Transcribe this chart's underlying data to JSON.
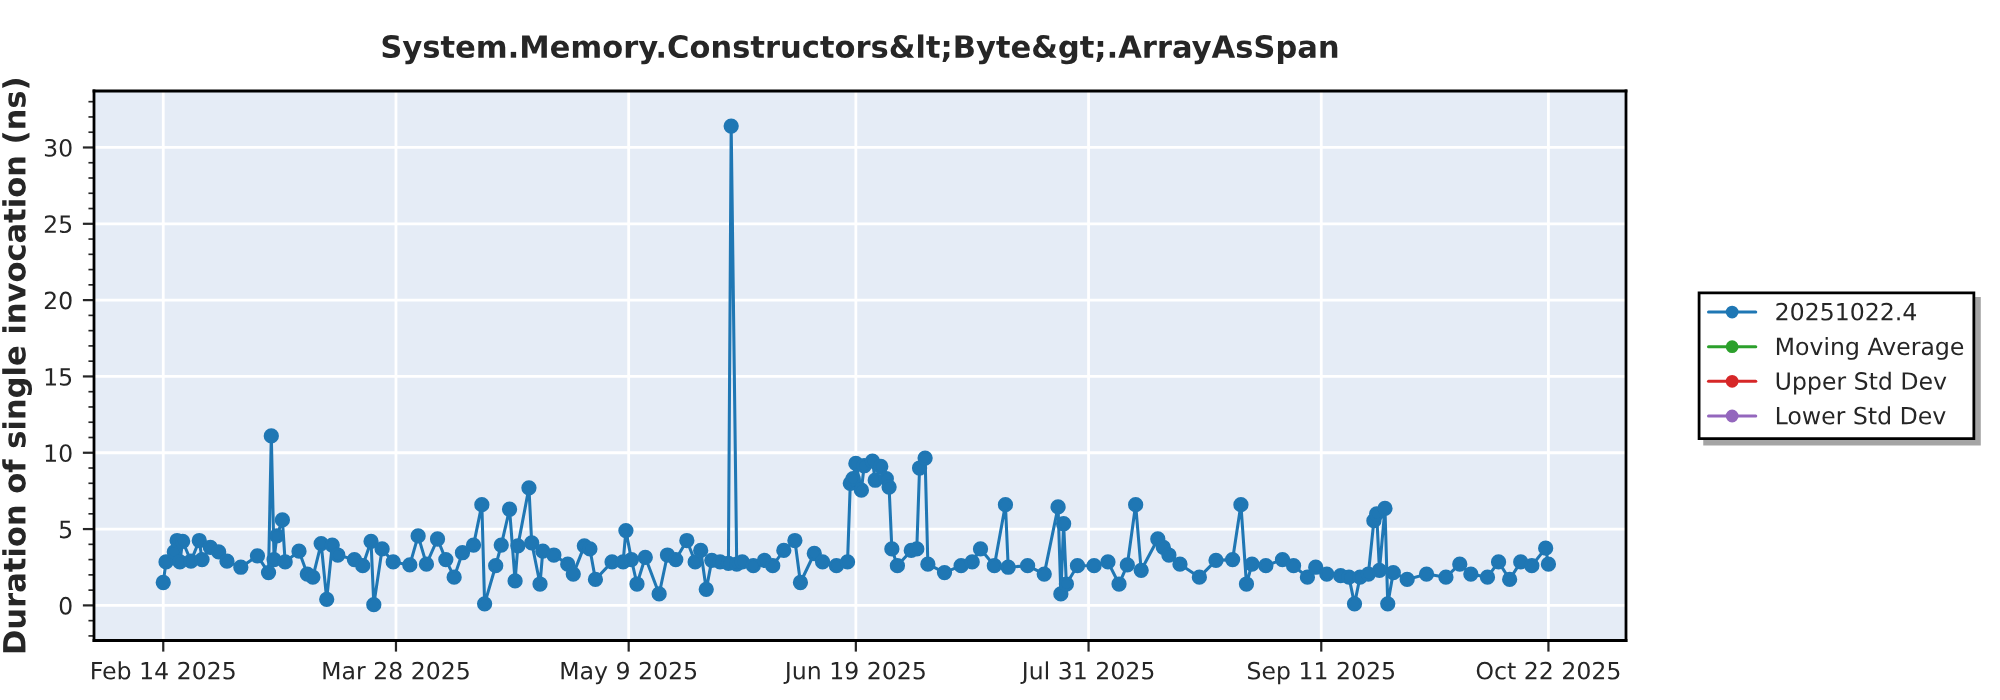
{
  "chart_data": {
    "type": "line",
    "title": "System.Memory.Constructors&lt;Byte&gt;.ArrayAsSpan",
    "ylabel": "Duration of single invocation (ns)",
    "xlim": [
      "2025-02-01T12:00",
      "2025-11-05"
    ],
    "ylim": [
      -2.3,
      33.7
    ],
    "xticks": [
      {
        "value": "2025-02-14",
        "label": "Feb 14 2025"
      },
      {
        "value": "2025-03-28",
        "label": "Mar 28 2025"
      },
      {
        "value": "2025-05-09",
        "label": "May 9 2025"
      },
      {
        "value": "2025-06-19",
        "label": "Jun 19 2025"
      },
      {
        "value": "2025-07-31",
        "label": "Jul 31 2025"
      },
      {
        "value": "2025-09-11",
        "label": "Sep 11 2025"
      },
      {
        "value": "2025-10-22",
        "label": "Oct 22 2025"
      }
    ],
    "yticks": [
      0,
      5,
      10,
      15,
      20,
      25,
      30
    ],
    "grid": true,
    "legend": "right",
    "marker": "circle",
    "line_style": "solid",
    "series": [
      {
        "name": "20251022.4",
        "color": "#1f77b4",
        "x": [
          "2025-02-14",
          "2025-02-14T12:00",
          "2025-02-16",
          "2025-02-16T12:00",
          "2025-02-17",
          "2025-02-17T12:00",
          "2025-02-19",
          "2025-02-20T12:00",
          "2025-02-21",
          "2025-02-22T12:00",
          "2025-02-24",
          "2025-02-25T12:00",
          "2025-02-28",
          "2025-03-03",
          "2025-03-05",
          "2025-03-05T12:00",
          "2025-03-06",
          "2025-03-06T12:00",
          "2025-03-07T12:00",
          "2025-03-08",
          "2025-03-10T12:00",
          "2025-03-12",
          "2025-03-13",
          "2025-03-14T12:00",
          "2025-03-15T12:00",
          "2025-03-16T12:00",
          "2025-03-17T12:00",
          "2025-03-20T12:00",
          "2025-03-22",
          "2025-03-23T12:00",
          "2025-03-24",
          "2025-03-25T12:00",
          "2025-03-27T12:00",
          "2025-03-30T12:00",
          "2025-04-01",
          "2025-04-02T12:00",
          "2025-04-04T12:00",
          "2025-04-06",
          "2025-04-07T12:00",
          "2025-04-09",
          "2025-04-11",
          "2025-04-12T12:00",
          "2025-04-13",
          "2025-04-15",
          "2025-04-16",
          "2025-04-17T12:00",
          "2025-04-18T12:00",
          "2025-04-19",
          "2025-04-21",
          "2025-04-21T12:00",
          "2025-04-23",
          "2025-04-23T12:00",
          "2025-04-25T12:00",
          "2025-04-28",
          "2025-04-29",
          "2025-05-01",
          "2025-05-02",
          "2025-05-03",
          "2025-05-06",
          "2025-05-08",
          "2025-05-08T12:00",
          "2025-05-09T12:00",
          "2025-05-10T12:00",
          "2025-05-12",
          "2025-05-14T12:00",
          "2025-05-16",
          "2025-05-17T12:00",
          "2025-05-19T12:00",
          "2025-05-21",
          "2025-05-22",
          "2025-05-23",
          "2025-05-24",
          "2025-05-25T12:00",
          "2025-05-27",
          "2025-05-27T12:00",
          "2025-05-28T12:00",
          "2025-05-29T12:00",
          "2025-05-31T12:00",
          "2025-06-02T12:00",
          "2025-06-04",
          "2025-06-06",
          "2025-06-08",
          "2025-06-09",
          "2025-06-11T12:00",
          "2025-06-13",
          "2025-06-15T12:00",
          "2025-06-17T12:00",
          "2025-06-18",
          "2025-06-18T12:00",
          "2025-06-19",
          "2025-06-20",
          "2025-06-20T12:00",
          "2025-06-22",
          "2025-06-22T12:00",
          "2025-06-23T12:00",
          "2025-06-24T12:00",
          "2025-06-25",
          "2025-06-25T12:00",
          "2025-06-26T12:00",
          "2025-06-29",
          "2025-06-30",
          "2025-06-30T12:00",
          "2025-07-01T12:00",
          "2025-07-02",
          "2025-07-05",
          "2025-07-08",
          "2025-07-10",
          "2025-07-11T12:00",
          "2025-07-14",
          "2025-07-16",
          "2025-07-16T12:00",
          "2025-07-20",
          "2025-07-23",
          "2025-07-25T12:00",
          "2025-07-26",
          "2025-07-26T12:00",
          "2025-07-27",
          "2025-07-29",
          "2025-08-01",
          "2025-08-03T12:00",
          "2025-08-05T12:00",
          "2025-08-07",
          "2025-08-08T12:00",
          "2025-08-09T12:00",
          "2025-08-12T12:00",
          "2025-08-13T12:00",
          "2025-08-14T12:00",
          "2025-08-16T12:00",
          "2025-08-20",
          "2025-08-23",
          "2025-08-26",
          "2025-08-27T12:00",
          "2025-08-28T12:00",
          "2025-08-29T12:00",
          "2025-09-01",
          "2025-09-04",
          "2025-09-06",
          "2025-09-08T12:00",
          "2025-09-10",
          "2025-09-12",
          "2025-09-14T12:00",
          "2025-09-16",
          "2025-09-17",
          "2025-09-18",
          "2025-09-19T12:00",
          "2025-09-20T12:00",
          "2025-09-21",
          "2025-09-21T12:00",
          "2025-09-22T12:00",
          "2025-09-23",
          "2025-09-24",
          "2025-09-26T12:00",
          "2025-09-30",
          "2025-10-03T12:00",
          "2025-10-06",
          "2025-10-08",
          "2025-10-11",
          "2025-10-13",
          "2025-10-15",
          "2025-10-17",
          "2025-10-19",
          "2025-10-21T12:00",
          "2025-10-22"
        ],
        "values": [
          1.5,
          2.85,
          3.5,
          4.25,
          2.85,
          4.2,
          2.9,
          4.25,
          3.0,
          3.8,
          3.5,
          2.9,
          2.5,
          3.25,
          2.15,
          11.1,
          3.0,
          4.55,
          5.6,
          2.85,
          3.55,
          2.05,
          1.85,
          4.05,
          0.4,
          3.95,
          3.3,
          3.0,
          2.6,
          4.2,
          0.05,
          3.7,
          2.85,
          2.65,
          4.55,
          2.7,
          4.35,
          3.0,
          1.85,
          3.45,
          3.95,
          6.6,
          0.1,
          2.6,
          3.95,
          6.3,
          1.6,
          3.9,
          7.7,
          4.1,
          1.4,
          3.55,
          3.3,
          2.7,
          2.05,
          3.9,
          3.7,
          1.7,
          2.85,
          2.85,
          4.9,
          3.0,
          1.4,
          3.15,
          0.75,
          3.3,
          3.0,
          4.25,
          2.85,
          3.6,
          1.05,
          2.95,
          2.85,
          2.75,
          31.4,
          2.7,
          2.85,
          2.6,
          2.95,
          2.6,
          3.6,
          4.25,
          1.5,
          3.4,
          2.85,
          2.6,
          2.85,
          8.0,
          8.3,
          9.3,
          7.55,
          9.15,
          9.45,
          8.2,
          9.1,
          8.3,
          7.75,
          3.7,
          2.6,
          3.6,
          3.7,
          9.0,
          9.65,
          2.7,
          2.15,
          2.6,
          2.85,
          3.7,
          2.6,
          6.6,
          2.5,
          2.6,
          2.05,
          6.45,
          0.75,
          5.35,
          1.4,
          2.6,
          2.6,
          2.85,
          1.4,
          2.65,
          6.6,
          2.3,
          4.35,
          3.8,
          3.3,
          2.7,
          1.85,
          2.95,
          3.0,
          6.6,
          1.4,
          2.7,
          2.6,
          3.0,
          2.6,
          1.85,
          2.5,
          2.05,
          1.95,
          1.85,
          0.1,
          1.85,
          2.05,
          5.55,
          6.0,
          2.3,
          6.35,
          0.1,
          2.15,
          1.7,
          2.05,
          1.85,
          2.7,
          2.05,
          1.85,
          2.85,
          1.7,
          2.85,
          2.6,
          3.75,
          2.7
        ]
      },
      {
        "name": "Moving Average",
        "color": "#2ca02c"
      },
      {
        "name": "Upper Std Dev",
        "color": "#d62728"
      },
      {
        "name": "Lower Std Dev",
        "color": "#9467bd"
      }
    ]
  }
}
